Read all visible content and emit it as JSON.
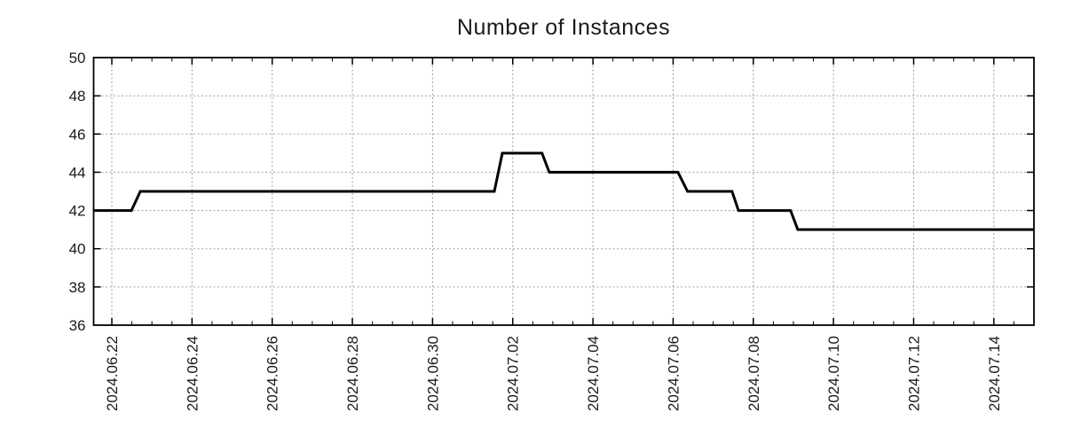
{
  "title": "Number of Instances",
  "colors": {
    "line": "#000000",
    "grid": "#a0a0a0",
    "axis": "#000000",
    "text": "#1a1a1a",
    "background": "#ffffff"
  },
  "chart_data": {
    "type": "line",
    "style": "step",
    "title": "Number of Instances",
    "xlabel": "",
    "ylabel": "",
    "legend": false,
    "grid": true,
    "x_axis": {
      "unit": "days since 2024-06-22 00:00",
      "range": [
        -0.454,
        23.0
      ],
      "minor_tick_step": 0.5,
      "major_ticks": [
        {
          "d": 0,
          "label": "2024.06.22"
        },
        {
          "d": 2,
          "label": "2024.06.24"
        },
        {
          "d": 4,
          "label": "2024.06.26"
        },
        {
          "d": 6,
          "label": "2024.06.28"
        },
        {
          "d": 8,
          "label": "2024.06.30"
        },
        {
          "d": 10,
          "label": "2024.07.02"
        },
        {
          "d": 12,
          "label": "2024.07.04"
        },
        {
          "d": 14,
          "label": "2024.07.06"
        },
        {
          "d": 16,
          "label": "2024.07.08"
        },
        {
          "d": 18,
          "label": "2024.07.10"
        },
        {
          "d": 20,
          "label": "2024.07.12"
        },
        {
          "d": 22,
          "label": "2024.07.14"
        }
      ]
    },
    "y_axis": {
      "range": [
        36,
        50
      ],
      "major_tick_step": 2,
      "major_ticks": [
        {
          "v": 36,
          "label": "36"
        },
        {
          "v": 38,
          "label": "38"
        },
        {
          "v": 40,
          "label": "40"
        },
        {
          "v": 42,
          "label": "42"
        },
        {
          "v": 44,
          "label": "44"
        },
        {
          "v": 46,
          "label": "46"
        },
        {
          "v": 48,
          "label": "48"
        },
        {
          "v": 50,
          "label": "50"
        }
      ]
    },
    "series": [
      {
        "name": "instances",
        "color": "#000000",
        "points": [
          [
            -0.454,
            42
          ],
          [
            0.49,
            42
          ],
          [
            0.71,
            43
          ],
          [
            9.54,
            43
          ],
          [
            9.74,
            45
          ],
          [
            10.73,
            45
          ],
          [
            10.91,
            44
          ],
          [
            14.12,
            44
          ],
          [
            14.36,
            43
          ],
          [
            15.47,
            43
          ],
          [
            15.63,
            42
          ],
          [
            16.93,
            42
          ],
          [
            17.11,
            41
          ],
          [
            23.0,
            41
          ]
        ]
      }
    ],
    "step_summary": [
      {
        "from": "start",
        "value": 42
      },
      {
        "date": "2024.06.22",
        "value": 43
      },
      {
        "date": "2024.07.01",
        "value": 45
      },
      {
        "date": "2024.07.02",
        "value": 44
      },
      {
        "date": "2024.07.06",
        "value": 43
      },
      {
        "date": "2024.07.07",
        "value": 42
      },
      {
        "date": "2024.07.09",
        "value": 41
      }
    ]
  }
}
